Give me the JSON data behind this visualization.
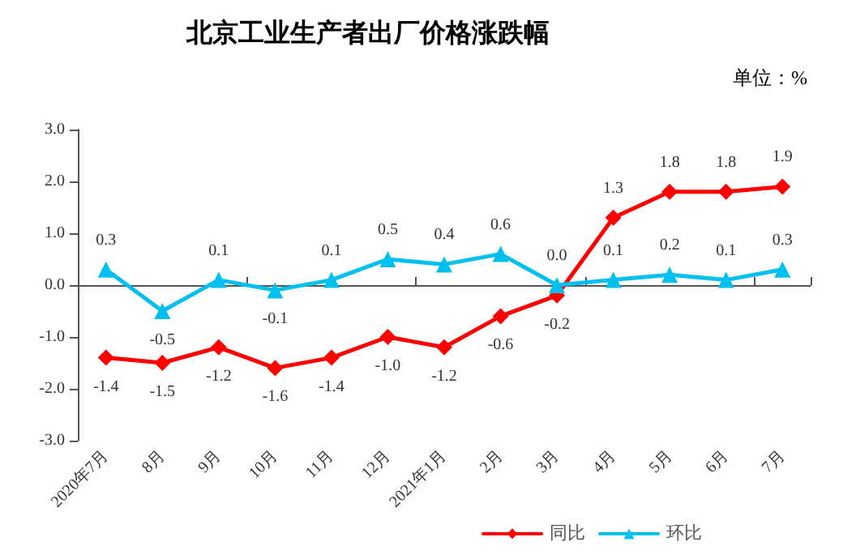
{
  "chart_data": {
    "type": "line",
    "title": "北京工业生产者出厂价格涨跌幅",
    "annotations": [
      "单位：%"
    ],
    "categories": [
      "2020年7月",
      "8月",
      "9月",
      "10月",
      "11月",
      "12月",
      "2021年1月",
      "2月",
      "3月",
      "4月",
      "5月",
      "6月",
      "7月"
    ],
    "series": [
      {
        "name": "同比",
        "color": "#ff0000",
        "marker": "diamond",
        "values": [
          -1.4,
          -1.5,
          -1.2,
          -1.6,
          -1.4,
          -1.0,
          -1.2,
          -0.6,
          -0.2,
          1.3,
          1.8,
          1.8,
          1.9
        ],
        "value_labels": [
          "-1.4",
          "-1.5",
          "-1.2",
          "-1.6",
          "-1.4",
          "-1.0",
          "-1.2",
          "-0.6",
          "-0.2",
          "1.3",
          "1.8",
          "1.8",
          "1.9"
        ]
      },
      {
        "name": "环比",
        "color": "#00c0f0",
        "marker": "triangle",
        "values": [
          0.3,
          -0.5,
          0.1,
          -0.1,
          0.1,
          0.5,
          0.4,
          0.6,
          0.0,
          0.1,
          0.2,
          0.1,
          0.3
        ],
        "value_labels": [
          "0.3",
          "-0.5",
          "0.1",
          "-0.1",
          "0.1",
          "0.5",
          "0.4",
          "0.6",
          "0.0",
          "0.1",
          "0.2",
          "0.1",
          "0.3"
        ]
      }
    ],
    "ylim": [
      -3,
      3
    ],
    "yticks": [
      {
        "value": -3,
        "label": "-3.0"
      },
      {
        "value": -2,
        "label": "-2.0"
      },
      {
        "value": -1,
        "label": "-1.0"
      },
      {
        "value": 0,
        "label": "0.0"
      },
      {
        "value": 1,
        "label": "1.0"
      },
      {
        "value": 2,
        "label": "2.0"
      },
      {
        "value": 3,
        "label": "3.0"
      }
    ],
    "legend": "bottom right",
    "line_style": "solid"
  }
}
